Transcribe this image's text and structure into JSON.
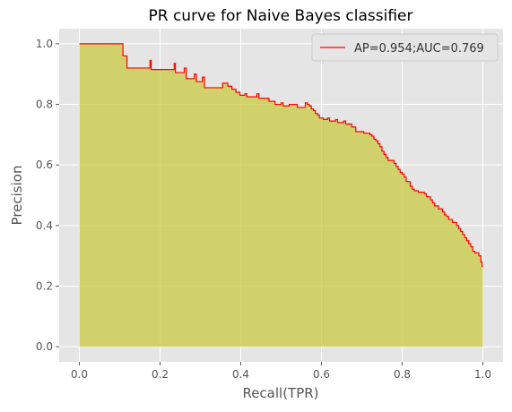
{
  "chart_data": {
    "type": "area",
    "title": "PR curve for Naive Bayes classifier",
    "xlabel": "Recall(TPR)",
    "ylabel": "Precision",
    "xlim": [
      -0.05,
      1.05
    ],
    "ylim": [
      -0.05,
      1.05
    ],
    "xticks": [
      0.0,
      0.2,
      0.4,
      0.6,
      0.8,
      1.0
    ],
    "xtick_labels": [
      "0.0",
      "0.2",
      "0.4",
      "0.6",
      "0.8",
      "1.0"
    ],
    "yticks": [
      0.0,
      0.2,
      0.4,
      0.6,
      0.8,
      1.0
    ],
    "ytick_labels": [
      "0.0",
      "0.2",
      "0.4",
      "0.6",
      "0.8",
      "1.0"
    ],
    "grid": true,
    "legend_position": "top-right",
    "legend_label": "AP=0.954;AUC=0.769",
    "line_color": "#ff0000",
    "fill_color": "#cccc4d",
    "fill_alpha": 0.8,
    "background_color": "#e5e5e5",
    "series": [
      {
        "name": "AP=0.954;AUC=0.769",
        "step": true,
        "points": [
          [
            0.0,
            1.0
          ],
          [
            0.108,
            1.0
          ],
          [
            0.108,
            0.96
          ],
          [
            0.118,
            0.96
          ],
          [
            0.118,
            0.92
          ],
          [
            0.175,
            0.945
          ],
          [
            0.178,
            0.915
          ],
          [
            0.235,
            0.935
          ],
          [
            0.238,
            0.905
          ],
          [
            0.26,
            0.92
          ],
          [
            0.265,
            0.885
          ],
          [
            0.285,
            0.9
          ],
          [
            0.29,
            0.875
          ],
          [
            0.305,
            0.89
          ],
          [
            0.31,
            0.855
          ],
          [
            0.355,
            0.87
          ],
          [
            0.365,
            0.87
          ],
          [
            0.368,
            0.86
          ],
          [
            0.375,
            0.86
          ],
          [
            0.378,
            0.85
          ],
          [
            0.385,
            0.85
          ],
          [
            0.388,
            0.84
          ],
          [
            0.395,
            0.84
          ],
          [
            0.398,
            0.83
          ],
          [
            0.41,
            0.835
          ],
          [
            0.415,
            0.825
          ],
          [
            0.44,
            0.835
          ],
          [
            0.445,
            0.82
          ],
          [
            0.465,
            0.82
          ],
          [
            0.47,
            0.81
          ],
          [
            0.48,
            0.81
          ],
          [
            0.485,
            0.8
          ],
          [
            0.5,
            0.805
          ],
          [
            0.505,
            0.795
          ],
          [
            0.52,
            0.8
          ],
          [
            0.535,
            0.8
          ],
          [
            0.54,
            0.79
          ],
          [
            0.56,
            0.805
          ],
          [
            0.565,
            0.8
          ],
          [
            0.57,
            0.795
          ],
          [
            0.575,
            0.785
          ],
          [
            0.58,
            0.78
          ],
          [
            0.585,
            0.77
          ],
          [
            0.59,
            0.765
          ],
          [
            0.595,
            0.755
          ],
          [
            0.605,
            0.75
          ],
          [
            0.615,
            0.755
          ],
          [
            0.62,
            0.745
          ],
          [
            0.635,
            0.75
          ],
          [
            0.64,
            0.74
          ],
          [
            0.655,
            0.745
          ],
          [
            0.66,
            0.735
          ],
          [
            0.67,
            0.735
          ],
          [
            0.675,
            0.725
          ],
          [
            0.68,
            0.725
          ],
          [
            0.685,
            0.71
          ],
          [
            0.7,
            0.71
          ],
          [
            0.705,
            0.705
          ],
          [
            0.715,
            0.705
          ],
          [
            0.72,
            0.7
          ],
          [
            0.725,
            0.695
          ],
          [
            0.73,
            0.685
          ],
          [
            0.735,
            0.68
          ],
          [
            0.74,
            0.67
          ],
          [
            0.745,
            0.66
          ],
          [
            0.75,
            0.645
          ],
          [
            0.755,
            0.635
          ],
          [
            0.76,
            0.625
          ],
          [
            0.765,
            0.615
          ],
          [
            0.775,
            0.615
          ],
          [
            0.78,
            0.605
          ],
          [
            0.785,
            0.595
          ],
          [
            0.79,
            0.585
          ],
          [
            0.795,
            0.575
          ],
          [
            0.8,
            0.57
          ],
          [
            0.805,
            0.56
          ],
          [
            0.81,
            0.545
          ],
          [
            0.82,
            0.53
          ],
          [
            0.825,
            0.52
          ],
          [
            0.83,
            0.515
          ],
          [
            0.84,
            0.51
          ],
          [
            0.855,
            0.505
          ],
          [
            0.86,
            0.495
          ],
          [
            0.87,
            0.485
          ],
          [
            0.875,
            0.475
          ],
          [
            0.88,
            0.465
          ],
          [
            0.89,
            0.455
          ],
          [
            0.9,
            0.445
          ],
          [
            0.905,
            0.435
          ],
          [
            0.91,
            0.43
          ],
          [
            0.915,
            0.42
          ],
          [
            0.925,
            0.41
          ],
          [
            0.935,
            0.4
          ],
          [
            0.94,
            0.39
          ],
          [
            0.945,
            0.38
          ],
          [
            0.95,
            0.37
          ],
          [
            0.955,
            0.36
          ],
          [
            0.96,
            0.35
          ],
          [
            0.965,
            0.34
          ],
          [
            0.97,
            0.33
          ],
          [
            0.975,
            0.315
          ],
          [
            0.98,
            0.31
          ],
          [
            0.985,
            0.31
          ],
          [
            0.99,
            0.3
          ],
          [
            0.995,
            0.28
          ],
          [
            0.998,
            0.265
          ],
          [
            1.0,
            0.265
          ]
        ]
      }
    ]
  }
}
